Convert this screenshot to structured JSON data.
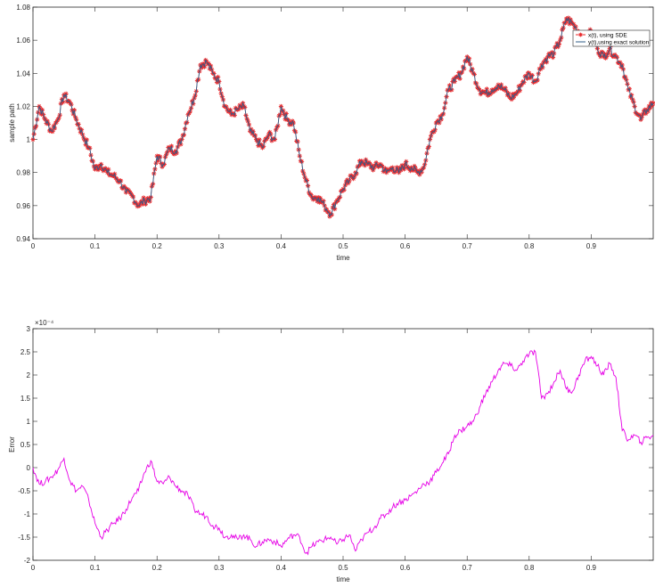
{
  "chart_data": [
    {
      "type": "line",
      "xlabel": "time",
      "ylabel": "sample path",
      "xlim": [
        0,
        1
      ],
      "ylim": [
        0.94,
        1.08
      ],
      "xticks": [
        "0",
        "0.1",
        "0.2",
        "0.3",
        "0.4",
        "0.5",
        "0.6",
        "0.7",
        "0.8",
        "0.9"
      ],
      "yticks": [
        "0.94",
        "0.96",
        "0.98",
        "1",
        "1.02",
        "1.04",
        "1.06",
        "1.08"
      ],
      "ytick_values": [
        0.94,
        0.96,
        0.98,
        1.0,
        1.02,
        1.04,
        1.06,
        1.08
      ],
      "xtick_values": [
        0,
        0.1,
        0.2,
        0.3,
        0.4,
        0.5,
        0.6,
        0.7,
        0.8,
        0.9
      ],
      "legend_position": "top-right",
      "series": [
        {
          "name": "x(t), using SDE",
          "color": "#e8282b",
          "marker": "asterisk"
        },
        {
          "name": "y(t),using exact solution",
          "color": "#2f5e8a"
        }
      ],
      "x": [
        0,
        0.01,
        0.02,
        0.03,
        0.04,
        0.05,
        0.06,
        0.07,
        0.08,
        0.09,
        0.1,
        0.11,
        0.12,
        0.13,
        0.14,
        0.15,
        0.16,
        0.17,
        0.18,
        0.19,
        0.2,
        0.21,
        0.22,
        0.23,
        0.24,
        0.25,
        0.26,
        0.27,
        0.28,
        0.29,
        0.3,
        0.31,
        0.32,
        0.33,
        0.34,
        0.35,
        0.36,
        0.37,
        0.38,
        0.39,
        0.4,
        0.41,
        0.42,
        0.43,
        0.44,
        0.45,
        0.46,
        0.47,
        0.48,
        0.49,
        0.5,
        0.51,
        0.52,
        0.53,
        0.54,
        0.55,
        0.56,
        0.57,
        0.58,
        0.59,
        0.6,
        0.61,
        0.62,
        0.63,
        0.64,
        0.65,
        0.66,
        0.67,
        0.68,
        0.69,
        0.7,
        0.71,
        0.72,
        0.73,
        0.74,
        0.75,
        0.76,
        0.77,
        0.78,
        0.79,
        0.8,
        0.81,
        0.82,
        0.83,
        0.84,
        0.85,
        0.86,
        0.87,
        0.88,
        0.89,
        0.9,
        0.91,
        0.92,
        0.93,
        0.94,
        0.95,
        0.96,
        0.97,
        0.98,
        0.99,
        1.0
      ],
      "values": [
        1.0,
        1.02,
        1.012,
        1.005,
        1.012,
        1.027,
        1.022,
        1.012,
        1.003,
        0.995,
        0.982,
        0.985,
        0.98,
        0.978,
        0.975,
        0.968,
        0.966,
        0.96,
        0.963,
        0.965,
        0.99,
        0.985,
        0.995,
        0.993,
        1.0,
        1.015,
        1.025,
        1.045,
        1.047,
        1.04,
        1.035,
        1.02,
        1.015,
        1.018,
        1.02,
        1.005,
        1.0,
        0.995,
        1.003,
        1.0,
        1.02,
        1.012,
        1.01,
        0.99,
        0.975,
        0.965,
        0.965,
        0.96,
        0.955,
        0.963,
        0.97,
        0.975,
        0.98,
        0.987,
        0.985,
        0.983,
        0.985,
        0.98,
        0.983,
        0.98,
        0.985,
        0.983,
        0.98,
        0.983,
        1.0,
        1.01,
        1.015,
        1.03,
        1.035,
        1.04,
        1.05,
        1.04,
        1.03,
        1.028,
        1.03,
        1.033,
        1.03,
        1.025,
        1.028,
        1.035,
        1.04,
        1.035,
        1.045,
        1.05,
        1.052,
        1.06,
        1.073,
        1.07,
        1.065,
        1.06,
        1.065,
        1.055,
        1.05,
        1.055,
        1.05,
        1.045,
        1.03,
        1.02,
        1.012,
        1.018,
        1.022
      ]
    },
    {
      "type": "line",
      "xlabel": "time",
      "ylabel": "Error",
      "exponent_label": "×10⁻⁴",
      "xlim": [
        0,
        1
      ],
      "ylim": [
        -2,
        3
      ],
      "xticks": [
        "0",
        "0.1",
        "0.2",
        "0.3",
        "0.4",
        "0.5",
        "0.6",
        "0.7",
        "0.8",
        "0.9"
      ],
      "yticks": [
        "-2",
        "-1.5",
        "-1",
        "-0.5",
        "0",
        "0.5",
        "1",
        "1.5",
        "2",
        "2.5",
        "3"
      ],
      "ytick_values": [
        -2,
        -1.5,
        -1,
        -0.5,
        0,
        0.5,
        1,
        1.5,
        2,
        2.5,
        3
      ],
      "xtick_values": [
        0,
        0.1,
        0.2,
        0.3,
        0.4,
        0.5,
        0.6,
        0.7,
        0.8,
        0.9
      ],
      "series": [
        {
          "name": "",
          "color": "#e600e6"
        }
      ],
      "x": [
        0,
        0.01,
        0.02,
        0.03,
        0.04,
        0.05,
        0.06,
        0.07,
        0.08,
        0.09,
        0.1,
        0.11,
        0.12,
        0.13,
        0.14,
        0.15,
        0.16,
        0.17,
        0.18,
        0.19,
        0.2,
        0.21,
        0.22,
        0.23,
        0.24,
        0.25,
        0.26,
        0.27,
        0.28,
        0.29,
        0.3,
        0.31,
        0.32,
        0.33,
        0.34,
        0.35,
        0.36,
        0.37,
        0.38,
        0.39,
        0.4,
        0.41,
        0.42,
        0.43,
        0.44,
        0.45,
        0.46,
        0.47,
        0.48,
        0.49,
        0.5,
        0.51,
        0.52,
        0.53,
        0.54,
        0.55,
        0.56,
        0.57,
        0.58,
        0.59,
        0.6,
        0.61,
        0.62,
        0.63,
        0.64,
        0.65,
        0.66,
        0.67,
        0.68,
        0.69,
        0.7,
        0.71,
        0.72,
        0.73,
        0.74,
        0.75,
        0.76,
        0.77,
        0.78,
        0.79,
        0.8,
        0.81,
        0.82,
        0.83,
        0.84,
        0.85,
        0.86,
        0.87,
        0.88,
        0.89,
        0.9,
        0.91,
        0.92,
        0.93,
        0.94,
        0.95,
        0.96,
        0.97,
        0.98,
        0.99,
        1.0
      ],
      "values": [
        0,
        -0.35,
        -0.3,
        -0.2,
        -0.05,
        0.2,
        -0.3,
        -0.5,
        -0.4,
        -0.7,
        -1.2,
        -1.5,
        -1.35,
        -1.2,
        -1.1,
        -0.9,
        -0.65,
        -0.5,
        -0.1,
        0.15,
        -0.3,
        -0.35,
        -0.2,
        -0.4,
        -0.5,
        -0.6,
        -0.9,
        -1.0,
        -1.05,
        -1.25,
        -1.3,
        -1.5,
        -1.45,
        -1.55,
        -1.45,
        -1.55,
        -1.7,
        -1.6,
        -1.55,
        -1.6,
        -1.7,
        -1.55,
        -1.45,
        -1.5,
        -1.85,
        -1.7,
        -1.6,
        -1.55,
        -1.5,
        -1.65,
        -1.55,
        -1.45,
        -1.8,
        -1.55,
        -1.4,
        -1.3,
        -1.1,
        -1.0,
        -0.85,
        -0.75,
        -0.7,
        -0.6,
        -0.5,
        -0.35,
        -0.3,
        -0.1,
        0.1,
        0.3,
        0.7,
        0.8,
        0.9,
        1.0,
        1.3,
        1.6,
        1.85,
        2.1,
        2.25,
        2.2,
        2.1,
        2.3,
        2.45,
        2.5,
        1.5,
        1.6,
        1.85,
        2.1,
        1.7,
        1.65,
        2.0,
        2.3,
        2.4,
        2.2,
        2.0,
        2.25,
        1.95,
        0.8,
        0.6,
        0.7,
        0.55,
        0.65,
        0.7
      ]
    }
  ]
}
